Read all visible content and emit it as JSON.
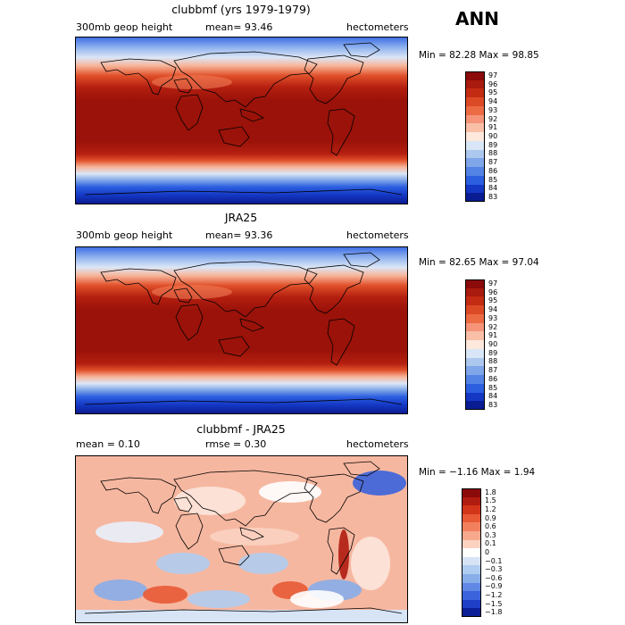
{
  "season": "ANN",
  "panels": [
    {
      "title": "clubbmf (yrs 1979-1979)",
      "left_label": "300mb geop height",
      "mid_label": "mean=  93.46",
      "right_label": "hectometers",
      "minmax": "Min =  82.28 Max =  98.85",
      "levels": [
        "97",
        "96",
        "95",
        "94",
        "93",
        "92",
        "91",
        "90",
        "89",
        "88",
        "87",
        "86",
        "85",
        "84",
        "83"
      ],
      "colors": [
        "#8b0a0a",
        "#a81b0e",
        "#c42b13",
        "#dc4a25",
        "#ec6b45",
        "#f59478",
        "#f9bfa7",
        "#fde8dc",
        "#d9e6f7",
        "#adc8ef",
        "#7fa6e8",
        "#5483e6",
        "#2c5fe0",
        "#1437c4",
        "#0a1c91"
      ]
    },
    {
      "title": "JRA25",
      "left_label": "300mb geop height",
      "mid_label": "mean=  93.36",
      "right_label": "hectometers",
      "minmax": "Min =  82.65 Max =  97.04",
      "levels": [
        "97",
        "96",
        "95",
        "94",
        "93",
        "92",
        "91",
        "90",
        "89",
        "88",
        "87",
        "86",
        "85",
        "84",
        "83"
      ],
      "colors": [
        "#8b0a0a",
        "#a81b0e",
        "#c42b13",
        "#dc4a25",
        "#ec6b45",
        "#f59478",
        "#f9bfa7",
        "#fde8dc",
        "#d9e6f7",
        "#adc8ef",
        "#7fa6e8",
        "#5483e6",
        "#2c5fe0",
        "#1437c4",
        "#0a1c91"
      ]
    },
    {
      "title": "clubbmf - JRA25",
      "left_label": "mean =   0.10",
      "mid_label": "rmse =   0.30",
      "right_label": "hectometers",
      "minmax": "Min = −1.16 Max =   1.94",
      "levels": [
        "1.8",
        "1.5",
        "1.2",
        "0.9",
        "0.6",
        "0.3",
        "0.1",
        "0",
        "−0.1",
        "−0.3",
        "−0.6",
        "−0.9",
        "−1.2",
        "−1.5",
        "−1.8"
      ],
      "colors": [
        "#8b0a0a",
        "#b01c10",
        "#d2351a",
        "#e85a36",
        "#f2805e",
        "#f7a98c",
        "#fbd2c0",
        "#ffffff",
        "#d6e4f6",
        "#b0ccf0",
        "#88ade9",
        "#6088e4",
        "#3a63dc",
        "#1f3fc7",
        "#0c1f96"
      ]
    }
  ]
}
